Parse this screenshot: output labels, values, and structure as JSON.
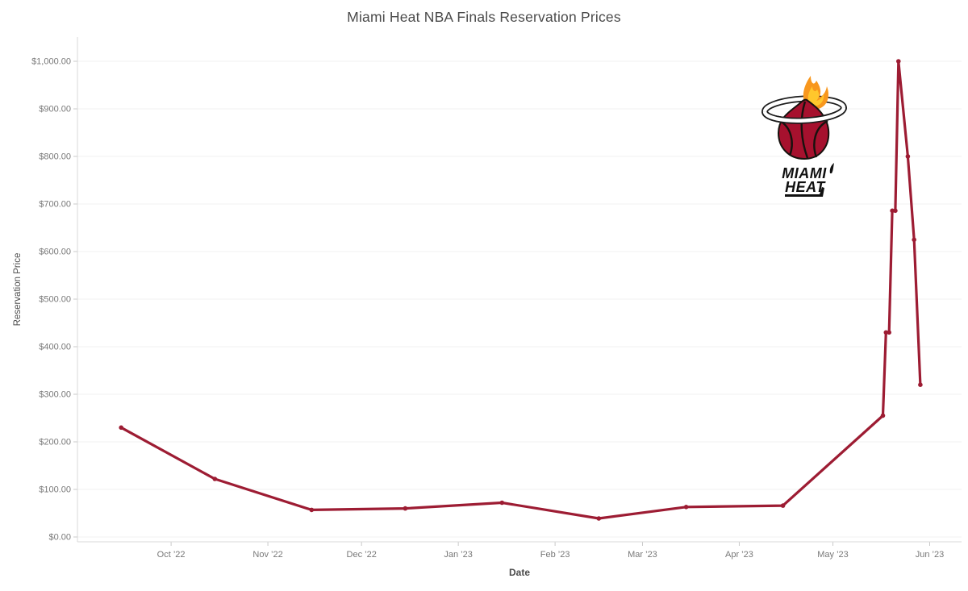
{
  "title": "Miami Heat NBA Finals Reservation Prices",
  "chart_data": {
    "type": "line",
    "title": "Miami Heat NBA Finals Reservation Prices",
    "xlabel": "Date",
    "ylabel": "Reservation Price",
    "series_name": "Reservation Price",
    "line_color": "#9d1c33",
    "grid": "horizontal",
    "ylim": [
      0,
      1000
    ],
    "x_domain": [
      "2022-09-01",
      "2023-06-11"
    ],
    "points": [
      {
        "date": "2022-09-15",
        "value": 230
      },
      {
        "date": "2022-10-15",
        "value": 122
      },
      {
        "date": "2022-11-15",
        "value": 57
      },
      {
        "date": "2022-12-15",
        "value": 60
      },
      {
        "date": "2023-01-15",
        "value": 72
      },
      {
        "date": "2023-02-15",
        "value": 39
      },
      {
        "date": "2023-03-15",
        "value": 63
      },
      {
        "date": "2023-04-15",
        "value": 66
      },
      {
        "date": "2023-05-17",
        "value": 255
      },
      {
        "date": "2023-05-18",
        "value": 430
      },
      {
        "date": "2023-05-19",
        "value": 430
      },
      {
        "date": "2023-05-20",
        "value": 686
      },
      {
        "date": "2023-05-21",
        "value": 686
      },
      {
        "date": "2023-05-22",
        "value": 1000
      },
      {
        "date": "2023-05-25",
        "value": 800
      },
      {
        "date": "2023-05-27",
        "value": 625
      },
      {
        "date": "2023-05-29",
        "value": 320
      }
    ],
    "x_ticks": [
      {
        "label": "Oct ’22",
        "date": "2022-10-01"
      },
      {
        "label": "Nov ’22",
        "date": "2022-11-01"
      },
      {
        "label": "Dec ’22",
        "date": "2022-12-01"
      },
      {
        "label": "Jan ’23",
        "date": "2023-01-01"
      },
      {
        "label": "Feb ’23",
        "date": "2023-02-01"
      },
      {
        "label": "Mar ’23",
        "date": "2023-03-01"
      },
      {
        "label": "Apr ’23",
        "date": "2023-04-01"
      },
      {
        "label": "May ’23",
        "date": "2023-05-01"
      },
      {
        "label": "Jun ’23",
        "date": "2023-06-01"
      }
    ],
    "y_ticks": [
      {
        "label": "$0.00",
        "value": 0
      },
      {
        "label": "$100.00",
        "value": 100
      },
      {
        "label": "$200.00",
        "value": 200
      },
      {
        "label": "$300.00",
        "value": 300
      },
      {
        "label": "$400.00",
        "value": 400
      },
      {
        "label": "$500.00",
        "value": 500
      },
      {
        "label": "$600.00",
        "value": 600
      },
      {
        "label": "$700.00",
        "value": 700
      },
      {
        "label": "$800.00",
        "value": 800
      },
      {
        "label": "$900.00",
        "value": 900
      },
      {
        "label": "$1,000.00",
        "value": 1000
      }
    ],
    "colors": {
      "grid": "#f0f0f0",
      "tick": "#c9c9c9",
      "axis": "#d9d9d9",
      "tick_label": "#787878",
      "title": "#4b4b4b"
    }
  },
  "logo": {
    "line1": "MIAMI",
    "line2": "HEAT",
    "ball_color": "#a6112e",
    "flame_outer": "#f8971d",
    "flame_inner": "#ffc72c"
  }
}
